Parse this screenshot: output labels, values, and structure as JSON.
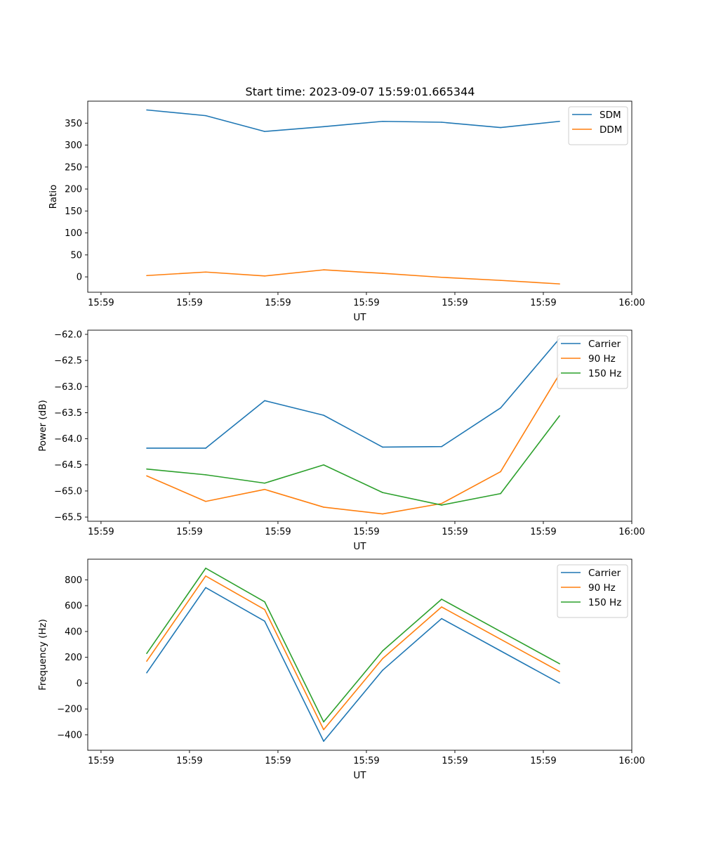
{
  "figure": {
    "title": "Start time: 2023-09-07 15:59:01.665344"
  },
  "chart_data": [
    {
      "type": "line",
      "title": "Start time: 2023-09-07 15:59:01.665344",
      "xlabel": "UT",
      "ylabel": "Ratio",
      "x": [
        1,
        2,
        3,
        4,
        5,
        6,
        7,
        8
      ],
      "xlim": [
        0,
        9.225
      ],
      "x_ticks": [
        0.225,
        1.725,
        3.225,
        4.725,
        6.225,
        7.725,
        9.225
      ],
      "x_tick_labels": [
        "15:59",
        "15:59",
        "15:59",
        "15:59",
        "15:59",
        "15:59",
        "16:00"
      ],
      "ylim": [
        -35,
        400
      ],
      "y_ticks": [
        0,
        50,
        100,
        150,
        200,
        250,
        300,
        350
      ],
      "y_tick_labels": [
        "0",
        "50",
        "100",
        "150",
        "200",
        "250",
        "300",
        "350"
      ],
      "legend_position": "top-right",
      "grid": false,
      "series": [
        {
          "name": "SDM",
          "color": "#1f77b4",
          "values": [
            380,
            367,
            331,
            342,
            354,
            352,
            340,
            354
          ]
        },
        {
          "name": "DDM",
          "color": "#ff7f0e",
          "values": [
            3,
            11,
            2,
            16,
            8,
            -1,
            -8,
            -16
          ]
        }
      ]
    },
    {
      "type": "line",
      "title": "",
      "xlabel": "UT",
      "ylabel": "Power (dB)",
      "x": [
        1,
        2,
        3,
        4,
        5,
        6,
        7,
        8
      ],
      "xlim": [
        0,
        9.225
      ],
      "x_ticks": [
        0.225,
        1.725,
        3.225,
        4.725,
        6.225,
        7.725,
        9.225
      ],
      "x_tick_labels": [
        "15:59",
        "15:59",
        "15:59",
        "15:59",
        "15:59",
        "15:59",
        "16:00"
      ],
      "ylim": [
        -65.58,
        -61.92
      ],
      "y_ticks": [
        -65.5,
        -65.0,
        -64.5,
        -64.0,
        -63.5,
        -63.0,
        -62.5,
        -62.0
      ],
      "y_tick_labels": [
        "−65.5",
        "−65.0",
        "−64.5",
        "−64.0",
        "−63.5",
        "−63.0",
        "−62.5",
        "−62.0"
      ],
      "legend_position": "top-right",
      "grid": false,
      "series": [
        {
          "name": "Carrier",
          "color": "#1f77b4",
          "values": [
            -64.18,
            -64.18,
            -63.27,
            -63.55,
            -64.16,
            -64.15,
            -63.41,
            -62.08
          ]
        },
        {
          "name": "90 Hz",
          "color": "#ff7f0e",
          "values": [
            -64.71,
            -65.2,
            -64.97,
            -65.31,
            -65.44,
            -65.24,
            -64.63,
            -62.76
          ]
        },
        {
          "name": "150 Hz",
          "color": "#2ca02c",
          "values": [
            -64.58,
            -64.69,
            -64.85,
            -64.5,
            -65.03,
            -65.27,
            -65.05,
            -63.56
          ]
        }
      ]
    },
    {
      "type": "line",
      "title": "",
      "xlabel": "UT",
      "ylabel": "Frequency (Hz)",
      "x": [
        1,
        2,
        3,
        4,
        5,
        6,
        7,
        8
      ],
      "xlim": [
        0,
        9.225
      ],
      "x_ticks": [
        0.225,
        1.725,
        3.225,
        4.725,
        6.225,
        7.725,
        9.225
      ],
      "x_tick_labels": [
        "15:59",
        "15:59",
        "15:59",
        "15:59",
        "15:59",
        "15:59",
        "16:00"
      ],
      "ylim": [
        -520,
        960
      ],
      "y_ticks": [
        -400,
        -200,
        0,
        200,
        400,
        600,
        800
      ],
      "y_tick_labels": [
        "−400",
        "−200",
        "0",
        "200",
        "400",
        "600",
        "800"
      ],
      "legend_position": "top-right",
      "grid": false,
      "series": [
        {
          "name": "Carrier",
          "color": "#1f77b4",
          "values": [
            80,
            740,
            480,
            -450,
            100,
            500,
            250,
            0
          ]
        },
        {
          "name": "90 Hz",
          "color": "#ff7f0e",
          "values": [
            170,
            830,
            570,
            -360,
            190,
            590,
            340,
            90
          ]
        },
        {
          "name": "150 Hz",
          "color": "#2ca02c",
          "values": [
            230,
            890,
            630,
            -300,
            250,
            650,
            400,
            150
          ]
        }
      ]
    }
  ]
}
